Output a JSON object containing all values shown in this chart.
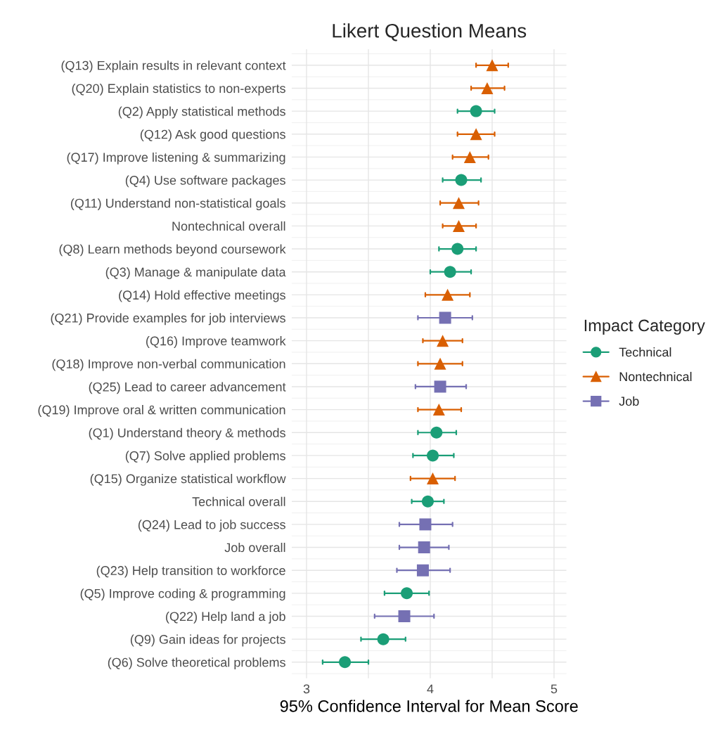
{
  "chart_data": {
    "type": "scatter",
    "orientation": "horizontal",
    "title": "Likert Question Means",
    "xlabel": "95% Confidence Interval for Mean Score",
    "legend_title": "Impact Category",
    "legend": "right",
    "grid": true,
    "categories": [
      "(Q13) Explain results in relevant context",
      "(Q20) Explain statistics to non-experts",
      "(Q2) Apply statistical methods",
      "(Q12) Ask good questions",
      "(Q17) Improve listening & summarizing",
      "(Q4) Use software packages",
      "(Q11) Understand non-statistical goals",
      "Nontechnical overall",
      "(Q8) Learn methods beyond coursework",
      "(Q3) Manage & manipulate data",
      "(Q14) Hold effective meetings",
      "(Q21) Provide examples for job interviews",
      "(Q16) Improve teamwork",
      "(Q18) Improve non-verbal communication",
      "(Q25) Lead to career advancement",
      "(Q19) Improve oral & written communication",
      "(Q1) Understand theory & methods",
      "(Q7) Solve applied problems",
      "(Q15) Organize statistical workflow",
      "Technical overall",
      "(Q24) Lead to job success",
      "Job overall",
      "(Q23) Help transition to workforce",
      "(Q5) Improve coding & programming",
      "(Q22) Help land a job",
      "(Q9) Gain ideas for projects",
      "(Q6) Solve theoretical problems"
    ],
    "xlim": [
      2.88,
      5.1
    ],
    "xticks": [
      3,
      {
        "value": 3.5,
        "label": null
      },
      4,
      {
        "value": 4.5,
        "label": null
      },
      5
    ],
    "series": [
      {
        "name": "Technical",
        "color": "#1b9e77",
        "marker": "circle",
        "values": [
          null,
          null,
          4.37,
          null,
          null,
          4.25,
          null,
          null,
          4.22,
          4.16,
          null,
          null,
          null,
          null,
          null,
          null,
          4.05,
          4.02,
          null,
          3.98,
          null,
          null,
          null,
          3.81,
          null,
          3.62,
          3.31
        ],
        "errors": [
          null,
          null,
          [
            4.22,
            4.52
          ],
          null,
          null,
          [
            4.1,
            4.41
          ],
          null,
          null,
          [
            4.07,
            4.37
          ],
          [
            4.0,
            4.33
          ],
          null,
          null,
          null,
          null,
          null,
          null,
          [
            3.9,
            4.21
          ],
          [
            3.86,
            4.19
          ],
          null,
          [
            3.85,
            4.11
          ],
          null,
          null,
          null,
          [
            3.63,
            3.99
          ],
          null,
          [
            3.44,
            3.8
          ],
          [
            3.13,
            3.5
          ]
        ]
      },
      {
        "name": "Nontechnical",
        "color": "#d95f02",
        "marker": "triangle",
        "values": [
          4.5,
          4.46,
          null,
          4.37,
          4.32,
          null,
          4.23,
          4.23,
          null,
          null,
          4.14,
          null,
          4.1,
          4.08,
          null,
          4.07,
          null,
          null,
          4.02,
          null,
          null,
          null,
          null,
          null,
          null,
          null,
          null
        ],
        "errors": [
          [
            4.37,
            4.63
          ],
          [
            4.33,
            4.6
          ],
          null,
          [
            4.22,
            4.52
          ],
          [
            4.18,
            4.47
          ],
          null,
          [
            4.08,
            4.39
          ],
          [
            4.1,
            4.37
          ],
          null,
          null,
          [
            3.96,
            4.32
          ],
          null,
          [
            3.94,
            4.26
          ],
          [
            3.9,
            4.26
          ],
          null,
          [
            3.9,
            4.25
          ],
          null,
          null,
          [
            3.84,
            4.2
          ],
          null,
          null,
          null,
          null,
          null,
          null,
          null,
          null
        ]
      },
      {
        "name": "Job",
        "color": "#7570b3",
        "marker": "square",
        "values": [
          null,
          null,
          null,
          null,
          null,
          null,
          null,
          null,
          null,
          null,
          null,
          4.12,
          null,
          null,
          4.08,
          null,
          null,
          null,
          null,
          null,
          3.96,
          3.95,
          3.94,
          null,
          3.79,
          null,
          null
        ],
        "errors": [
          null,
          null,
          null,
          null,
          null,
          null,
          null,
          null,
          null,
          null,
          null,
          [
            3.9,
            4.34
          ],
          null,
          null,
          [
            3.88,
            4.29
          ],
          null,
          null,
          null,
          null,
          null,
          [
            3.75,
            4.18
          ],
          [
            3.75,
            4.15
          ],
          [
            3.73,
            4.16
          ],
          null,
          [
            3.55,
            4.03
          ],
          null,
          null
        ]
      }
    ]
  }
}
